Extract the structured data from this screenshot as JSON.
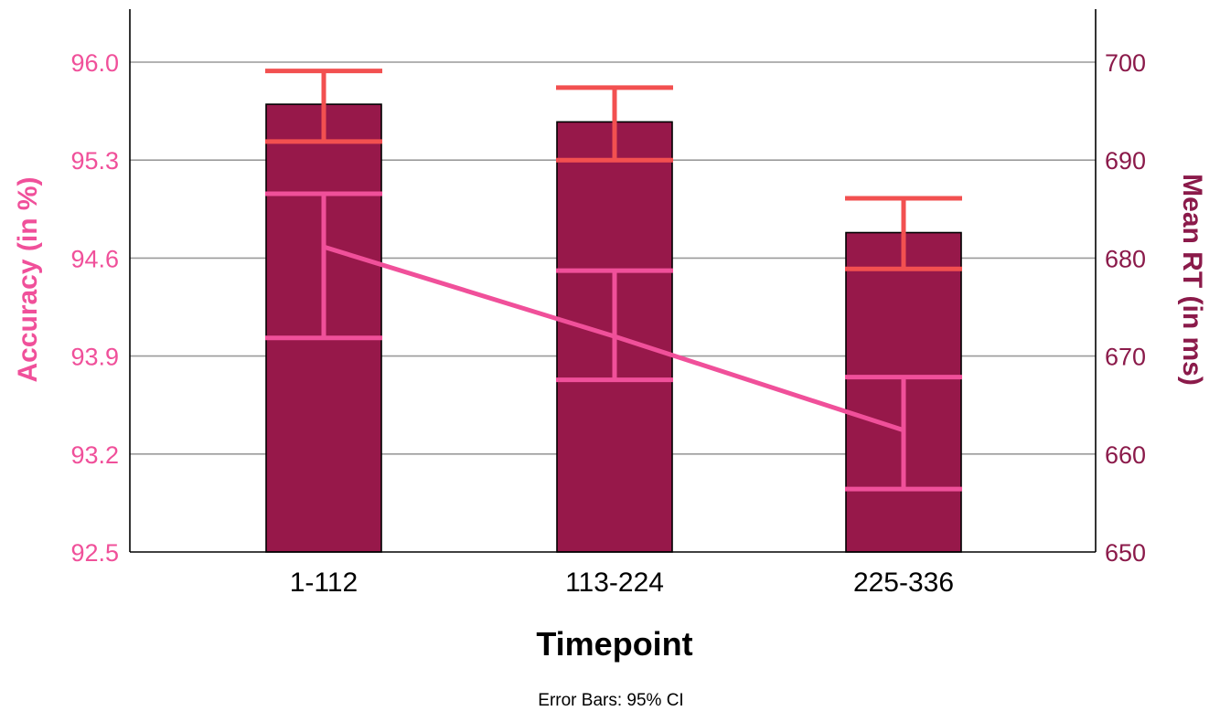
{
  "chart_data": {
    "type": "bar",
    "xlabel": "Timepoint",
    "categories": [
      "1-112",
      "113-224",
      "225-336"
    ],
    "left_axis": {
      "label": "Accuracy (in %)",
      "ylim": [
        92.5,
        96.0
      ],
      "ticks": [
        "92.5",
        "93.2",
        "93.9",
        "94.6",
        "95.3",
        "96.0"
      ],
      "color": "#f0509a"
    },
    "right_axis": {
      "label": "Mean RT (in ms)",
      "ylim": [
        650,
        700
      ],
      "ticks": [
        "650",
        "660",
        "670",
        "680",
        "690",
        "700"
      ],
      "color": "#8b1a4a"
    },
    "series": [
      {
        "kind": "bar",
        "axis": "right",
        "values": [
          695.7,
          693.9,
          682.6
        ],
        "ci_low": [
          691.9,
          690.0,
          678.9
        ],
        "ci_high": [
          699.1,
          697.4,
          686.1
        ],
        "color": "#97184a",
        "error_color": "#f25050"
      },
      {
        "kind": "line",
        "axis": "left",
        "values": [
          94.68,
          94.04,
          93.37
        ],
        "ci_low": [
          94.03,
          93.73,
          92.95
        ],
        "ci_high": [
          95.06,
          94.51,
          93.75
        ],
        "color": "#f0509a"
      }
    ],
    "grid": true,
    "footnote": "Error Bars: 95% CI"
  }
}
